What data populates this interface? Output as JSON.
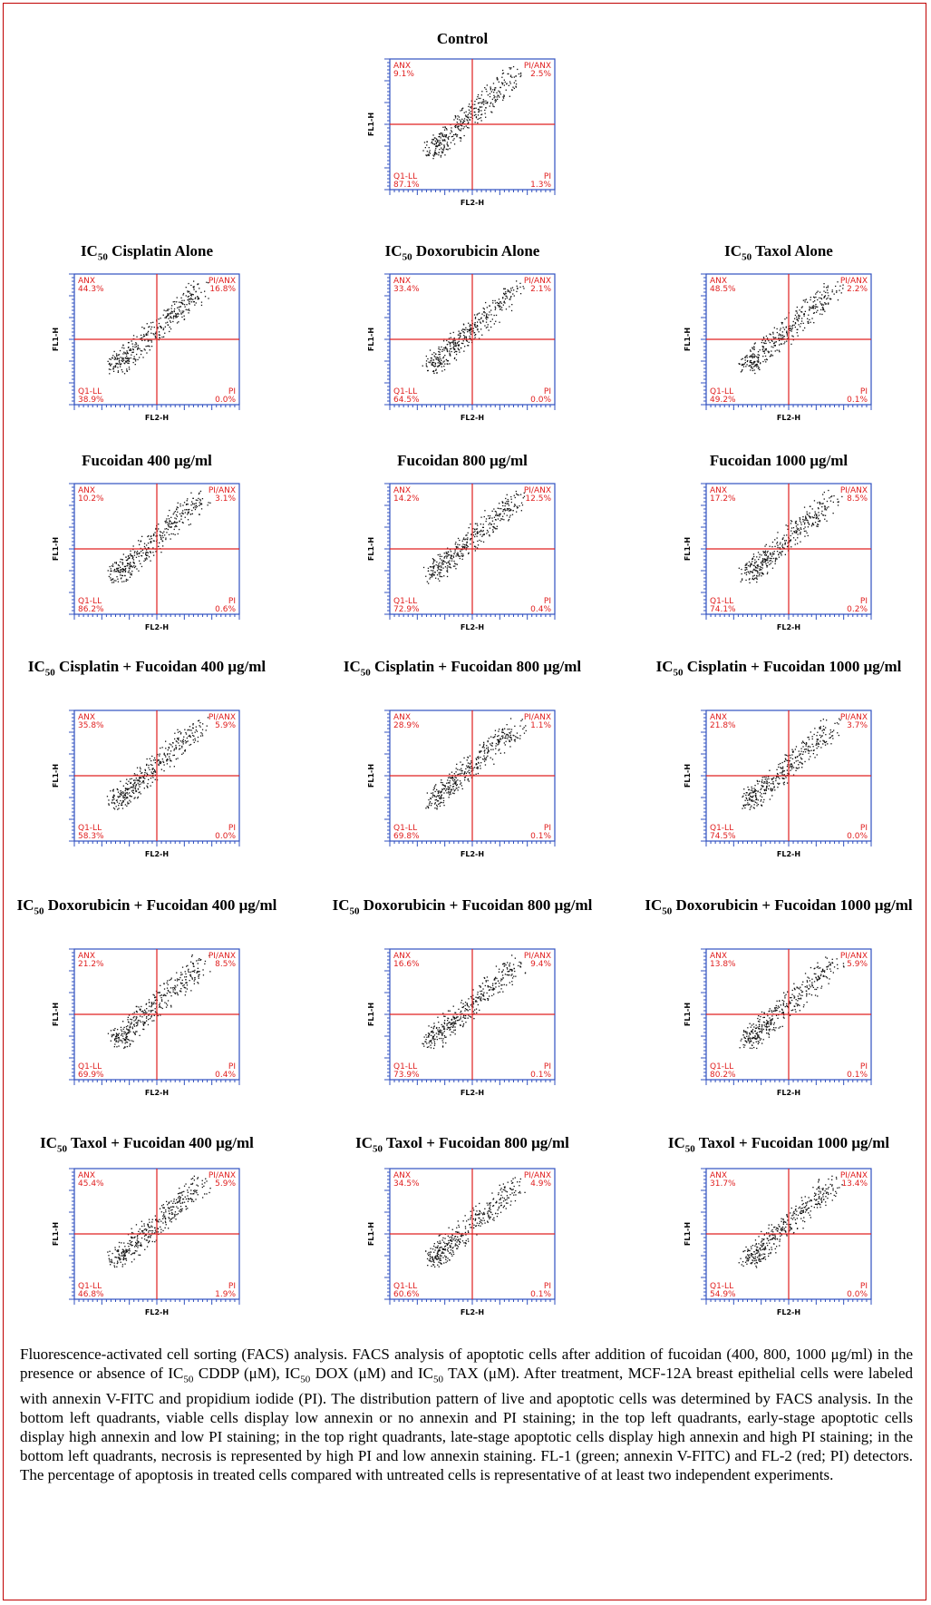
{
  "figure": {
    "axis_labels": {
      "x": "FL2-H",
      "y": "FL1-H"
    },
    "quadrant_names": {
      "ul": "ANX",
      "ur": "PI/ANX",
      "ll": "Q1-LL",
      "lr": "PI"
    },
    "panels": [
      {
        "title": [
          {
            "text": "Control"
          }
        ],
        "ul": "9.1%",
        "ur": "2.5%",
        "ll": "87.1%",
        "lr": "1.3%"
      },
      {
        "title": [
          {
            "text": "IC"
          },
          {
            "sub": "50"
          },
          {
            "text": " Cisplatin Alone"
          }
        ],
        "ul": "44.3%",
        "ur": "16.8%",
        "ll": "38.9%",
        "lr": "0.0%"
      },
      {
        "title": [
          {
            "text": "IC"
          },
          {
            "sub": "50"
          },
          {
            "text": " Doxorubicin Alone"
          }
        ],
        "ul": "33.4%",
        "ur": "2.1%",
        "ll": "64.5%",
        "lr": "0.0%"
      },
      {
        "title": [
          {
            "text": "IC"
          },
          {
            "sub": "50"
          },
          {
            "text": " Taxol Alone"
          }
        ],
        "ul": "48.5%",
        "ur": "2.2%",
        "ll": "49.2%",
        "lr": "0.1%"
      },
      {
        "title": [
          {
            "text": "Fucoidan 400 μg/ml"
          }
        ],
        "ul": "10.2%",
        "ur": "3.1%",
        "ll": "86.2%",
        "lr": "0.6%"
      },
      {
        "title": [
          {
            "text": "Fucoidan 800 μg/ml"
          }
        ],
        "ul": "14.2%",
        "ur": "12.5%",
        "ll": "72.9%",
        "lr": "0.4%"
      },
      {
        "title": [
          {
            "text": "Fucoidan 1000 μg/ml"
          }
        ],
        "ul": "17.2%",
        "ur": "8.5%",
        "ll": "74.1%",
        "lr": "0.2%"
      },
      {
        "title": [
          {
            "text": "IC"
          },
          {
            "sub": "50"
          },
          {
            "text": " Cisplatin + Fucoidan 400 μg/ml"
          }
        ],
        "ul": "35.8%",
        "ur": "5.9%",
        "ll": "58.3%",
        "lr": "0.0%"
      },
      {
        "title": [
          {
            "text": "IC"
          },
          {
            "sub": "50"
          },
          {
            "text": " Cisplatin + Fucoidan 800 μg/ml"
          }
        ],
        "ul": "28.9%",
        "ur": "1.1%",
        "ll": "69.8%",
        "lr": "0.1%"
      },
      {
        "title": [
          {
            "text": "IC"
          },
          {
            "sub": "50"
          },
          {
            "text": " Cisplatin + Fucoidan 1000 μg/ml"
          }
        ],
        "ul": "21.8%",
        "ur": "3.7%",
        "ll": "74.5%",
        "lr": "0.0%"
      },
      {
        "title": [
          {
            "text": "IC"
          },
          {
            "sub": "50"
          },
          {
            "text": " Doxorubicin + Fucoidan 400 μg/ml"
          }
        ],
        "ul": "21.2%",
        "ur": "8.5%",
        "ll": "69.9%",
        "lr": "0.4%"
      },
      {
        "title": [
          {
            "text": "IC"
          },
          {
            "sub": "50"
          },
          {
            "text": " Doxorubicin + Fucoidan 800 μg/ml"
          }
        ],
        "ul": "16.6%",
        "ur": "9.4%",
        "ll": "73.9%",
        "lr": "0.1%"
      },
      {
        "title": [
          {
            "text": "IC"
          },
          {
            "sub": "50"
          },
          {
            "text": " Doxorubicin + Fucoidan 1000 μg/ml"
          }
        ],
        "ul": "13.8%",
        "ur": "5.9%",
        "ll": "80.2%",
        "lr": "0.1%"
      },
      {
        "title": [
          {
            "text": "IC"
          },
          {
            "sub": "50"
          },
          {
            "text": " Taxol + Fucoidan 400 μg/ml"
          }
        ],
        "ul": "45.4%",
        "ur": "5.9%",
        "ll": "46.8%",
        "lr": "1.9%"
      },
      {
        "title": [
          {
            "text": "IC"
          },
          {
            "sub": "50"
          },
          {
            "text": " Taxol + Fucoidan 800 μg/ml"
          }
        ],
        "ul": "34.5%",
        "ur": "4.9%",
        "ll": "60.6%",
        "lr": "0.1%"
      },
      {
        "title": [
          {
            "text": "IC"
          },
          {
            "sub": "50"
          },
          {
            "text": " Taxol + Fucoidan 1000 μg/ml"
          }
        ],
        "ul": "31.7%",
        "ur": "13.4%",
        "ll": "54.9%",
        "lr": "0.0%"
      }
    ],
    "caption": [
      {
        "text": "Fluorescence-activated cell sorting (FACS) analysis. FACS analysis of apoptotic cells after addition of fucoidan (400, 800, 1000 μg/ml) in the presence or absence of IC"
      },
      {
        "sub": "50"
      },
      {
        "text": " CDDP (μM), IC"
      },
      {
        "sub": "50"
      },
      {
        "text": " DOX (μM) and IC"
      },
      {
        "sub": "50"
      },
      {
        "text": " TAX (μM). After treatment, MCF-12A breast epithelial cells were labeled with annexin V-FITC and propidium iodide (PI). The distribution pattern of live and apoptotic cells was determined by FACS analysis. In the bottom left quadrants, viable cells display low annexin or no annexin and PI staining; in the top left quadrants, early-stage apoptotic cells display high annexin and low PI staining; in the top right quadrants, late-stage apoptotic cells display high annexin and high PI staining; in the bottom left quadrants, necrosis is represented by high PI and low annexin staining. FL-1 (green; annexin V-FITC) and FL-2 (red; PI) detectors. The percentage of apoptosis in treated cells compared with untreated cells is representative of at least two independent experiments."
      }
    ]
  }
}
